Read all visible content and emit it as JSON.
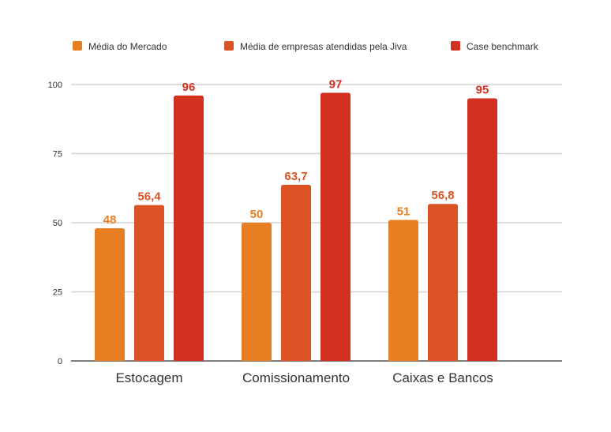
{
  "chart_data": {
    "type": "bar",
    "title": "",
    "xlabel": "",
    "ylabel": "",
    "ylim": [
      0,
      100
    ],
    "yticks": [
      0,
      25,
      50,
      75,
      100
    ],
    "grid": true,
    "legend_position": "top",
    "categories": [
      "Estocagem",
      "Comissionamento",
      "Caixas e Bancos"
    ],
    "series": [
      {
        "name": "Média do Mercado",
        "color": "#E67E22",
        "values": [
          48,
          50,
          51
        ],
        "labels": [
          "48",
          "50",
          "51"
        ]
      },
      {
        "name": "Média de empresas atendidas pela Jiva",
        "color": "#DB5325",
        "values": [
          56.4,
          63.7,
          56.8
        ],
        "labels": [
          "56,4",
          "63,7",
          "56,8"
        ]
      },
      {
        "name": "Case benchmark",
        "color": "#D3301F",
        "values": [
          96,
          97,
          95
        ],
        "labels": [
          "96",
          "97",
          "95"
        ]
      }
    ]
  }
}
